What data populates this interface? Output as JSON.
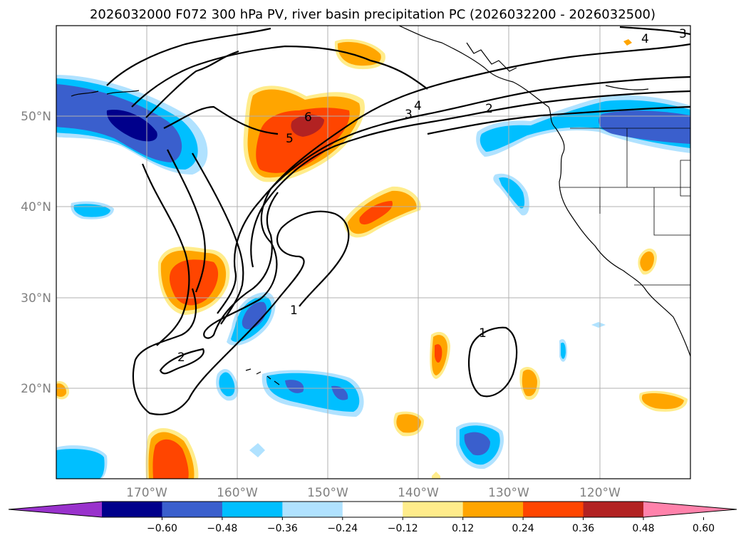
{
  "title": "2026032000 F072 300 hPa PV, river basin precipitation PC (2026032200 - 2026032500)",
  "lon_labels": [
    "170°W",
    "160°W",
    "150°W",
    "140°W",
    "130°W",
    "120°W"
  ],
  "lat_labels": [
    "50°N",
    "40°N",
    "30°N",
    "20°N"
  ],
  "colorbar": {
    "ticks": [
      "−0.60",
      "−0.48",
      "−0.36",
      "−0.24",
      "−0.12",
      "0.12",
      "0.24",
      "0.36",
      "0.48",
      "0.60"
    ],
    "colors": [
      "#9932cc",
      "#00008b",
      "#3a5fcd",
      "#00bfff",
      "#b0e2ff",
      "#ffffff",
      "#ffec8b",
      "#ffa500",
      "#ff4500",
      "#b22222",
      "#ff82ab"
    ]
  },
  "contour_labels": {
    "l1a": "1",
    "l1b": "1",
    "l2a": "2",
    "l2b": "2",
    "l3a": "3",
    "l3b": "3",
    "l4a": "4",
    "l4b": "4",
    "l5": "5",
    "l6": "6"
  }
}
